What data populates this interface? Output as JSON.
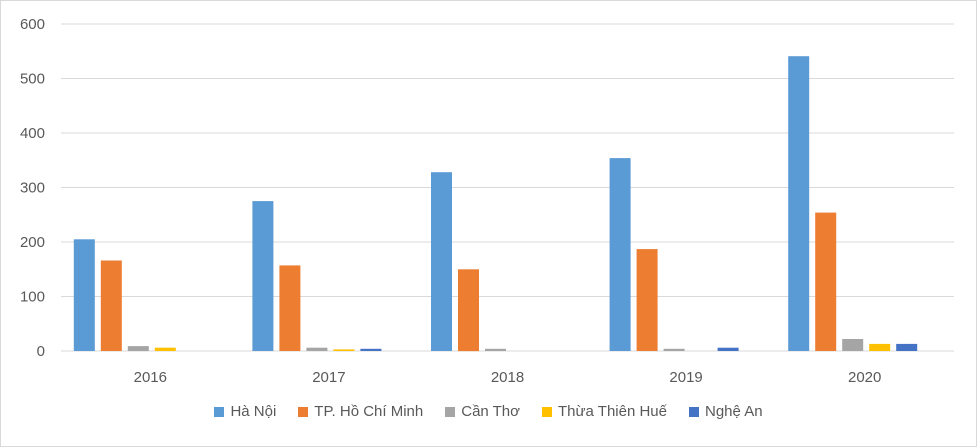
{
  "chart_data": {
    "type": "bar",
    "title": "",
    "xlabel": "",
    "ylabel": "",
    "categories": [
      "2016",
      "2017",
      "2018",
      "2019",
      "2020"
    ],
    "ylim": [
      0,
      600
    ],
    "yticks": [
      "0",
      "100",
      "200",
      "300",
      "400",
      "500",
      "600"
    ],
    "grid": true,
    "legend_position": "bottom",
    "series": [
      {
        "name": "Hà Nội",
        "color": "#5b9bd5",
        "values": [
          205,
          275,
          328,
          354,
          541
        ]
      },
      {
        "name": "TP. Hồ Chí Minh",
        "color": "#ed7d31",
        "values": [
          166,
          157,
          150,
          187,
          254
        ]
      },
      {
        "name": "Cần Thơ",
        "color": "#a5a5a5",
        "values": [
          9,
          6,
          4,
          4,
          22
        ]
      },
      {
        "name": "Thừa Thiên Huế",
        "color": "#ffc000",
        "values": [
          6,
          3,
          0,
          0,
          13
        ]
      },
      {
        "name": "Nghệ An",
        "color": "#4472c4",
        "values": [
          0,
          4,
          0,
          6,
          13
        ]
      }
    ]
  }
}
